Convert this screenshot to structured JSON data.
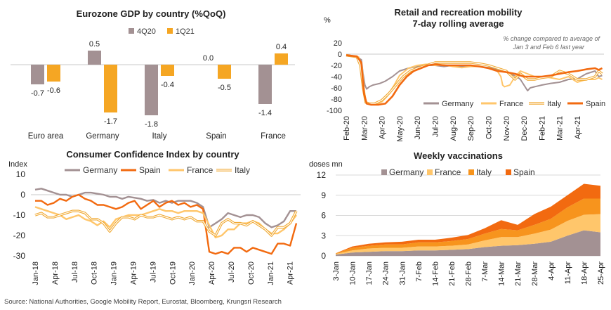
{
  "source": "Source: National Authorities, Google Mobility Report, Eurostat, Bloomberg, Krungsri Research",
  "chart_data": [
    {
      "type": "bar",
      "title": "Eurozone GDP by country (%QoQ)",
      "categories": [
        "Euro area",
        "Germany",
        "Italy",
        "Spain",
        "France"
      ],
      "series": [
        {
          "name": "4Q20",
          "color": "#a39193",
          "values": [
            -0.7,
            0.5,
            -1.8,
            0.0,
            -1.4
          ]
        },
        {
          "name": "1Q21",
          "color": "#f5a623",
          "values": [
            -0.6,
            -1.7,
            -0.4,
            -0.5,
            0.4
          ]
        }
      ],
      "data_labels": [
        [
          "-0.7",
          "0.5",
          "-1.8",
          "0.0",
          "-1.4"
        ],
        [
          "-0.6",
          "-1.7",
          "-0.4",
          "-0.5",
          "0.4"
        ]
      ],
      "ylim": [
        -2.0,
        0.7
      ],
      "legend": "top-center"
    },
    {
      "type": "line",
      "title": "Retail and recreation mobility",
      "subtitle": "7-day rolling average",
      "ylabel": "%",
      "annotation": "% change compared to average of Jan 3 and Feb 6 last year",
      "x_ticks": [
        "Feb-20",
        "Mar-20",
        "Apr-20",
        "May-20",
        "Jun-20",
        "Jul-20",
        "Aug-20",
        "Sep-20",
        "Oct-20",
        "Nov-20",
        "Dec-20",
        "Feb-21",
        "Mar-21",
        "Apr-21"
      ],
      "y_ticks": [
        "20",
        "0",
        "-20",
        "-40",
        "-60",
        "-80",
        "-100"
      ],
      "ylim": [
        -100,
        20
      ],
      "x_range": [
        0,
        14.5
      ],
      "legend": "bottom-right",
      "series": [
        {
          "name": "Germany",
          "color": "#a39193",
          "points": [
            [
              0.0,
              -3
            ],
            [
              0.6,
              -5
            ],
            [
              0.85,
              -10
            ],
            [
              0.95,
              -35
            ],
            [
              1.05,
              -55
            ],
            [
              1.15,
              -62
            ],
            [
              1.3,
              -58
            ],
            [
              1.5,
              -55
            ],
            [
              1.9,
              -52
            ],
            [
              2.2,
              -48
            ],
            [
              2.6,
              -40
            ],
            [
              3.0,
              -30
            ],
            [
              3.5,
              -25
            ],
            [
              4.0,
              -22
            ],
            [
              4.5,
              -20
            ],
            [
              5.0,
              -20
            ],
            [
              5.5,
              -22
            ],
            [
              6.0,
              -20
            ],
            [
              6.5,
              -22
            ],
            [
              7.0,
              -20
            ],
            [
              7.5,
              -22
            ],
            [
              8.0,
              -24
            ],
            [
              8.5,
              -27
            ],
            [
              9.0,
              -30
            ],
            [
              9.3,
              -36
            ],
            [
              9.6,
              -40
            ],
            [
              9.8,
              -45
            ],
            [
              10.0,
              -55
            ],
            [
              10.2,
              -65
            ],
            [
              10.35,
              -60
            ],
            [
              10.6,
              -58
            ],
            [
              11.0,
              -55
            ],
            [
              11.5,
              -52
            ],
            [
              12.0,
              -50
            ],
            [
              12.5,
              -45
            ],
            [
              13.0,
              -44
            ],
            [
              13.5,
              -35
            ],
            [
              14.0,
              -30
            ],
            [
              14.2,
              -40
            ],
            [
              14.4,
              -38
            ]
          ]
        },
        {
          "name": "France",
          "color": "#ffc66b",
          "points": [
            [
              0.0,
              -2
            ],
            [
              0.7,
              -5
            ],
            [
              0.9,
              -25
            ],
            [
              1.0,
              -60
            ],
            [
              1.1,
              -85
            ],
            [
              1.3,
              -88
            ],
            [
              1.6,
              -90
            ],
            [
              2.0,
              -85
            ],
            [
              2.3,
              -75
            ],
            [
              2.7,
              -55
            ],
            [
              3.0,
              -38
            ],
            [
              3.5,
              -25
            ],
            [
              4.0,
              -20
            ],
            [
              4.5,
              -18
            ],
            [
              5.0,
              -20
            ],
            [
              5.5,
              -19
            ],
            [
              6.0,
              -22
            ],
            [
              6.5,
              -24
            ],
            [
              7.0,
              -22
            ],
            [
              7.5,
              -22
            ],
            [
              8.0,
              -25
            ],
            [
              8.5,
              -30
            ],
            [
              8.7,
              -40
            ],
            [
              8.8,
              -55
            ],
            [
              8.9,
              -58
            ],
            [
              9.2,
              -55
            ],
            [
              9.5,
              -40
            ],
            [
              9.8,
              -30
            ],
            [
              10.2,
              -35
            ],
            [
              10.6,
              -40
            ],
            [
              11.0,
              -40
            ],
            [
              11.5,
              -42
            ],
            [
              12.0,
              -45
            ],
            [
              12.5,
              -40
            ],
            [
              13.0,
              -50
            ],
            [
              13.5,
              -45
            ],
            [
              14.0,
              -45
            ],
            [
              14.2,
              -42
            ],
            [
              14.4,
              -45
            ]
          ]
        },
        {
          "name": "Italy",
          "color": "#f0a830",
          "points": [
            [
              0.0,
              -2
            ],
            [
              0.6,
              -5
            ],
            [
              0.8,
              -20
            ],
            [
              0.95,
              -60
            ],
            [
              1.1,
              -86
            ],
            [
              1.3,
              -88
            ],
            [
              1.6,
              -88
            ],
            [
              2.0,
              -82
            ],
            [
              2.4,
              -70
            ],
            [
              2.8,
              -55
            ],
            [
              3.2,
              -40
            ],
            [
              3.6,
              -30
            ],
            [
              4.0,
              -25
            ],
            [
              4.5,
              -20
            ],
            [
              5.0,
              -15
            ],
            [
              5.5,
              -15
            ],
            [
              6.0,
              -15
            ],
            [
              6.5,
              -15
            ],
            [
              7.0,
              -15
            ],
            [
              7.5,
              -17
            ],
            [
              8.0,
              -20
            ],
            [
              8.5,
              -25
            ],
            [
              9.0,
              -30
            ],
            [
              9.5,
              -45
            ],
            [
              9.8,
              -35
            ],
            [
              10.2,
              -45
            ],
            [
              10.6,
              -45
            ],
            [
              11.0,
              -42
            ],
            [
              11.5,
              -40
            ],
            [
              12.0,
              -30
            ],
            [
              12.5,
              -35
            ],
            [
              13.0,
              -45
            ],
            [
              13.5,
              -45
            ],
            [
              14.0,
              -40
            ],
            [
              14.2,
              -30
            ],
            [
              14.4,
              -35
            ]
          ]
        },
        {
          "name": "Spain",
          "color": "#f26a10",
          "points": [
            [
              0.0,
              -2
            ],
            [
              0.6,
              -4
            ],
            [
              0.85,
              -15
            ],
            [
              1.0,
              -70
            ],
            [
              1.15,
              -88
            ],
            [
              1.4,
              -90
            ],
            [
              1.8,
              -90
            ],
            [
              2.2,
              -88
            ],
            [
              2.6,
              -75
            ],
            [
              3.0,
              -55
            ],
            [
              3.4,
              -40
            ],
            [
              3.8,
              -30
            ],
            [
              4.2,
              -25
            ],
            [
              4.6,
              -20
            ],
            [
              5.0,
              -18
            ],
            [
              5.5,
              -20
            ],
            [
              6.0,
              -20
            ],
            [
              6.5,
              -20
            ],
            [
              7.0,
              -20
            ],
            [
              7.5,
              -22
            ],
            [
              8.0,
              -25
            ],
            [
              8.5,
              -30
            ],
            [
              9.0,
              -32
            ],
            [
              9.5,
              -35
            ],
            [
              10.0,
              -40
            ],
            [
              10.5,
              -40
            ],
            [
              11.0,
              -40
            ],
            [
              11.5,
              -38
            ],
            [
              12.0,
              -35
            ],
            [
              12.5,
              -32
            ],
            [
              13.0,
              -30
            ],
            [
              13.5,
              -27
            ],
            [
              14.0,
              -25
            ],
            [
              14.2,
              -28
            ],
            [
              14.4,
              -25
            ]
          ]
        }
      ]
    },
    {
      "type": "line",
      "title": "Consumer Confidence Index by country",
      "ylabel": "Index",
      "x_ticks": [
        "Jan-18",
        "Apr-18",
        "Jul-18",
        "Oct-18",
        "Jan-19",
        "Apr-19",
        "Jul-19",
        "Oct-19",
        "Jan-20",
        "Apr-20",
        "Jul-20",
        "Oct-20",
        "Jan-21",
        "Apr-21"
      ],
      "y_ticks": [
        "10",
        "0",
        "-10",
        "-20",
        "-30"
      ],
      "ylim": [
        -30,
        10
      ],
      "legend": "top-left",
      "series": [
        {
          "name": "Germany",
          "color": "#a39193",
          "values": [
            2.5,
            3,
            2,
            1,
            0,
            0,
            -1,
            0,
            1,
            1,
            0.5,
            0,
            -1,
            -1,
            -2,
            -1,
            -1.5,
            -2,
            -3,
            -2.5,
            -4,
            -3,
            -4,
            -3,
            -3,
            -3,
            -4,
            -6,
            -16,
            -14,
            -12,
            -9,
            -10,
            -11,
            -10,
            -10,
            -11,
            -14,
            -16,
            -15,
            -13,
            -8,
            -8
          ]
        },
        {
          "name": "Spain",
          "color": "#f26a10",
          "values": [
            -3,
            -3,
            -5,
            -4,
            -2,
            -3,
            -1,
            0,
            -2,
            -3,
            -5,
            -5,
            -6,
            -7,
            -6,
            -4,
            -3,
            -7,
            -5,
            -3,
            -6,
            -4,
            -3,
            -5,
            -4,
            -6,
            -5,
            -7,
            -28,
            -29,
            -28,
            -29,
            -26,
            -26,
            -28,
            -26,
            -27,
            -28,
            -29,
            -24,
            -24,
            -25,
            -14
          ]
        },
        {
          "name": "France",
          "color": "#ffc66b",
          "values": [
            -6,
            -7,
            -8,
            -9,
            -10,
            -12,
            -11,
            -10,
            -12,
            -13,
            -15,
            -13,
            -16,
            -12,
            -11,
            -10,
            -10,
            -10,
            -9,
            -8,
            -7,
            -8,
            -8,
            -9,
            -8,
            -8,
            -8,
            -9,
            -15,
            -21,
            -20,
            -17,
            -17,
            -14,
            -14,
            -13,
            -14,
            -17,
            -19,
            -19,
            -17,
            -14,
            -10
          ]
        },
        {
          "name": "Italy",
          "color": "#f0a830",
          "values": [
            -10,
            -9,
            -11,
            -11,
            -10,
            -9,
            -8,
            -8,
            -9,
            -12,
            -12,
            -14,
            -18,
            -14,
            -11,
            -11,
            -12,
            -10,
            -11,
            -11,
            -10,
            -11,
            -12,
            -11,
            -12,
            -11,
            -13,
            -13,
            -18,
            -20,
            -14,
            -12,
            -14,
            -14,
            -15,
            -13,
            -15,
            -17,
            -20,
            -16,
            -16,
            -14,
            -8
          ]
        }
      ]
    },
    {
      "type": "area",
      "title": "Weekly vaccinations",
      "ylabel": "doses mn",
      "categories": [
        "3-Jan",
        "10-Jan",
        "17-Jan",
        "24-Jan",
        "31-Jan",
        "7-Feb",
        "14-Feb",
        "21-Feb",
        "28-Feb",
        "7-Mar",
        "14-Mar",
        "21-Mar",
        "28-Mar",
        "4-Apr",
        "11-Apr",
        "18-Apr",
        "25-Apr"
      ],
      "y_ticks": [
        "12",
        "9",
        "6",
        "3",
        "0"
      ],
      "ylim": [
        0,
        12
      ],
      "stacked": true,
      "legend": "top-left",
      "series": [
        {
          "name": "Germany",
          "color": "#a39193",
          "values": [
            0.2,
            0.5,
            0.6,
            0.7,
            0.7,
            0.8,
            0.8,
            0.9,
            1.0,
            1.3,
            1.5,
            1.6,
            1.8,
            2.1,
            3.0,
            3.8,
            3.5
          ]
        },
        {
          "name": "France",
          "color": "#ffc66b",
          "values": [
            0.1,
            0.3,
            0.5,
            0.5,
            0.5,
            0.6,
            0.6,
            0.6,
            0.7,
            1.0,
            1.3,
            1.2,
            1.5,
            1.8,
            2.2,
            2.3,
            2.7
          ]
        },
        {
          "name": "Italy",
          "color": "#f7941d",
          "values": [
            0.1,
            0.4,
            0.4,
            0.5,
            0.5,
            0.6,
            0.6,
            0.7,
            0.8,
            1.0,
            1.2,
            1.0,
            1.3,
            1.6,
            2.0,
            2.4,
            2.3
          ]
        },
        {
          "name": "Spain",
          "color": "#f26a10",
          "values": [
            0.0,
            0.2,
            0.3,
            0.3,
            0.4,
            0.4,
            0.4,
            0.5,
            0.6,
            0.8,
            1.3,
            0.8,
            1.6,
            1.8,
            1.8,
            2.2,
            1.9
          ]
        }
      ]
    }
  ]
}
